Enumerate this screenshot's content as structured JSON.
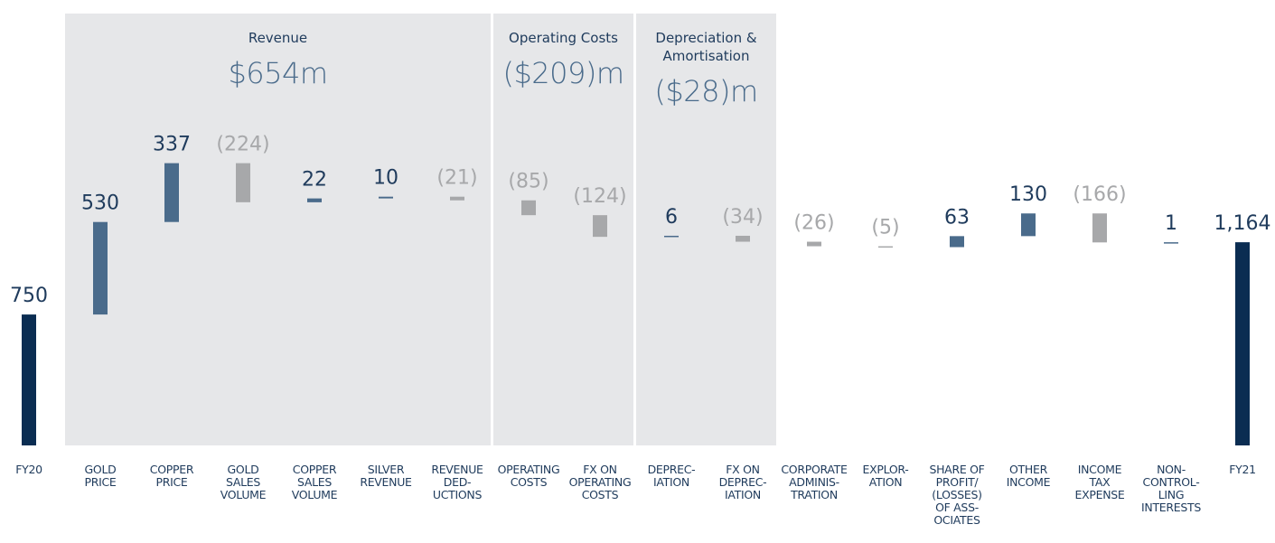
{
  "chart_data": {
    "type": "waterfall",
    "categories": [
      "FY20",
      "GOLD\nPRICE",
      "COPPER\nPRICE",
      "GOLD\nSALES\nVOLUME",
      "COPPER\nSALES\nVOLUME",
      "SILVER\nREVENUE",
      "REVENUE\nDED-\nUCTIONS",
      "OPERATING\nCOSTS",
      "FX ON\nOPERATING\nCOSTS",
      "DEPREC-\nIATION",
      "FX ON\nDEPREC-\nIATION",
      "CORPORATE\nADMINIS-\nTRATION",
      "EXPLOR-\nATION",
      "SHARE OF\nPROFIT/\n(LOSSES)\nOF ASS-\nOCIATES",
      "OTHER\nINCOME",
      "INCOME\nTAX\nEXPENSE",
      "NON-\nCONTROL-\nLING\nINTERESTS",
      "FY21"
    ],
    "values": [
      750,
      530,
      337,
      -224,
      22,
      10,
      -21,
      -85,
      -124,
      6,
      -34,
      -26,
      -5,
      63,
      130,
      -166,
      1,
      1164
    ],
    "value_labels": [
      "750",
      "530",
      "337",
      "(224)",
      "22",
      "10",
      "(21)",
      "(85)",
      "(124)",
      "6",
      "(34)",
      "(26)",
      "(5)",
      "63",
      "130",
      "(166)",
      "1",
      "1,164"
    ],
    "total_color": "#0b2d52",
    "increase_color": "#4a6b8b",
    "decrease_color": "#a7a8aa",
    "ylim": [
      0,
      2500
    ],
    "groups": [
      {
        "title": "Revenue",
        "total": "$654m",
        "first": 1,
        "last": 6
      },
      {
        "title": "Operating Costs",
        "total": "($209)m",
        "first": 7,
        "last": 8
      },
      {
        "title": "Depreciation &\nAmortisation",
        "total": "($28)m",
        "first": 9,
        "last": 10
      }
    ]
  }
}
